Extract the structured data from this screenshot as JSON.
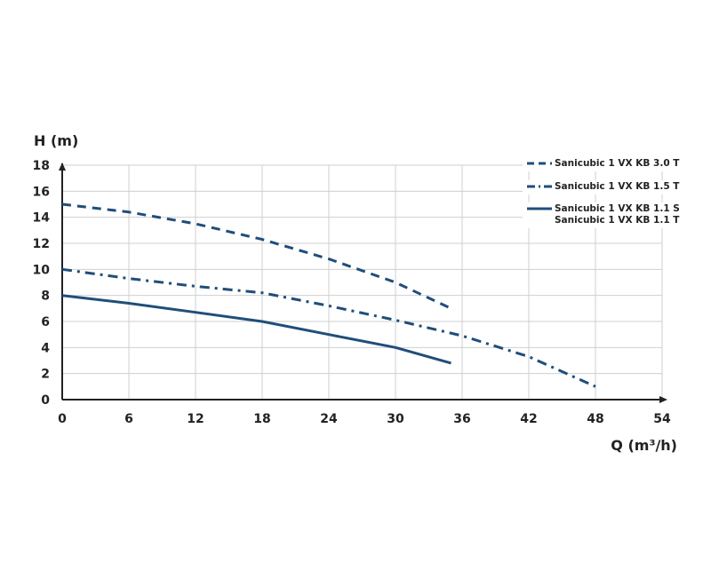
{
  "chart_data": {
    "type": "line",
    "title": "",
    "xlabel": "Q (m³/h)",
    "ylabel": "H (m)",
    "xlim": [
      0,
      54
    ],
    "ylim": [
      0,
      18
    ],
    "xticks": [
      0,
      6,
      12,
      18,
      24,
      30,
      36,
      42,
      48,
      54
    ],
    "yticks": [
      0,
      2,
      4,
      6,
      8,
      10,
      12,
      14,
      16,
      18
    ],
    "grid": true,
    "legend": "top-right",
    "line_color": "#1f4e7a",
    "series": [
      {
        "names": [
          "Sanicubic 1 VX KB 3.0 T"
        ],
        "style": "dashed",
        "points": [
          [
            0,
            15.0
          ],
          [
            6,
            14.4
          ],
          [
            12,
            13.5
          ],
          [
            18,
            12.3
          ],
          [
            24,
            10.8
          ],
          [
            30,
            9.0
          ],
          [
            35,
            7.0
          ]
        ]
      },
      {
        "names": [
          "Sanicubic 1 VX KB 1.5 T"
        ],
        "style": "dash-dot",
        "points": [
          [
            0,
            10.0
          ],
          [
            6,
            9.3
          ],
          [
            12,
            8.7
          ],
          [
            18,
            8.2
          ],
          [
            24,
            7.2
          ],
          [
            30,
            6.1
          ],
          [
            36,
            4.9
          ],
          [
            42,
            3.3
          ],
          [
            48,
            1.0
          ]
        ]
      },
      {
        "names": [
          "Sanicubic 1 VX KB 1.1 S",
          "Sanicubic 1 VX KB 1.1 T"
        ],
        "style": "solid",
        "points": [
          [
            0,
            8.0
          ],
          [
            6,
            7.4
          ],
          [
            12,
            6.7
          ],
          [
            18,
            6.0
          ],
          [
            24,
            5.0
          ],
          [
            30,
            4.0
          ],
          [
            35,
            2.8
          ]
        ]
      }
    ]
  }
}
